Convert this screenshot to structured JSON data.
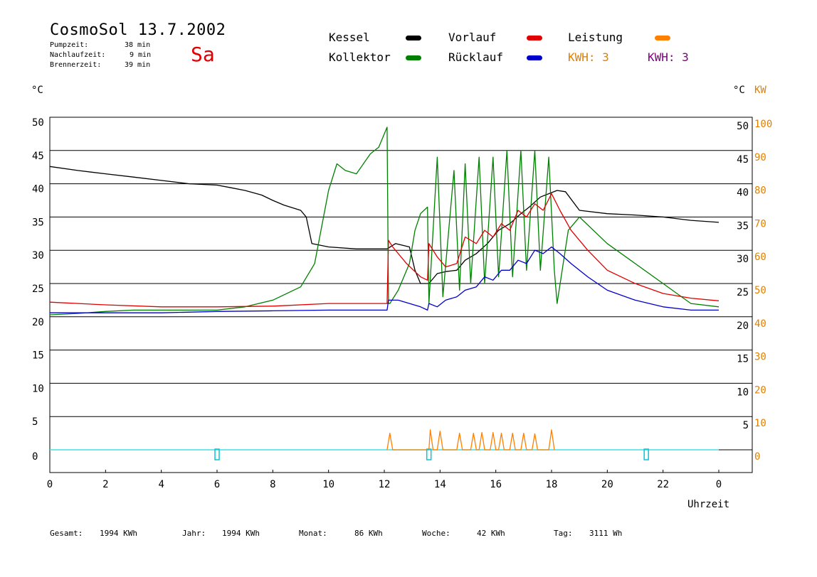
{
  "header": {
    "title": "CosmoSol 13.7.2002",
    "day": "Sa",
    "stats": [
      {
        "label": "Pumpzeit:",
        "value": "38 min"
      },
      {
        "label": "Nachlaufzeit:",
        "value": "9 min"
      },
      {
        "label": "Brennerzeit:",
        "value": "39 min"
      }
    ]
  },
  "legend": {
    "kessel": {
      "label": "Kessel",
      "color": "#000000"
    },
    "kollektor": {
      "label": "Kollektor",
      "color": "#008000"
    },
    "vorlauf": {
      "label": "Vorlauf",
      "color": "#e00000"
    },
    "ruecklauf": {
      "label": "Rücklauf",
      "color": "#0000cc"
    },
    "leistung": {
      "label": "Leistung",
      "color": "#ff8000"
    },
    "kwh1": "KWH: 3",
    "kwh2": "KWH: 3",
    "kwh1_color": "#e08000",
    "kwh2_color": "#800080"
  },
  "axes": {
    "left_unit": "°C",
    "right_unit_c": "°C",
    "right_unit_kw": "KW",
    "x_label": "Uhrzeit"
  },
  "footer": {
    "gesamt_label": "Gesamt:",
    "gesamt": "1994 KWh",
    "jahr_label": "Jahr:",
    "jahr": "1994 KWh",
    "monat_label": "Monat:",
    "monat": "86 KWh",
    "woche_label": "Woche:",
    "woche": "42 KWh",
    "tag_label": "Tag:",
    "tag": "3111 Wh"
  },
  "chart_data": {
    "type": "line",
    "x_ticks": [
      "0",
      "2",
      "4",
      "6",
      "8",
      "10",
      "12",
      "14",
      "16",
      "18",
      "20",
      "22",
      "0"
    ],
    "y_left_ticks": [
      "0",
      "5",
      "10",
      "15",
      "20",
      "25",
      "30",
      "35",
      "40",
      "45",
      "50"
    ],
    "y_right_c_ticks": [
      "5",
      "10",
      "15",
      "20",
      "25",
      "30",
      "35",
      "40",
      "45",
      "50"
    ],
    "y_right_kw_ticks": [
      "0",
      "10",
      "20",
      "30",
      "40",
      "50",
      "60",
      "70",
      "80",
      "90",
      "100"
    ],
    "xlim": [
      0,
      24
    ],
    "ylim": [
      0,
      50
    ],
    "grid": true,
    "series": [
      {
        "name": "Kessel",
        "color": "#000000",
        "x": [
          0,
          1,
          2,
          3,
          4,
          5,
          6,
          6.5,
          7,
          7.6,
          8,
          8.4,
          9,
          9.2,
          9.4,
          10,
          11,
          12.1,
          12.4,
          12.9,
          13.1,
          13.3,
          13.6,
          13.9,
          14.2,
          14.6,
          14.9,
          15.3,
          15.7,
          16.1,
          16.5,
          16.9,
          17.2,
          17.6,
          17.9,
          18.2,
          18.5,
          19,
          20,
          21,
          22,
          23,
          24
        ],
        "y": [
          42.6,
          42,
          41.5,
          41,
          40.5,
          40,
          39.8,
          39.4,
          39,
          38.3,
          37.5,
          36.8,
          36,
          35,
          31,
          30.5,
          30.2,
          30.2,
          31,
          30.5,
          27,
          25,
          25,
          26.5,
          26.8,
          27,
          28.5,
          29.5,
          31,
          33,
          34,
          35.5,
          36.5,
          38,
          38.5,
          39,
          38.8,
          36,
          35.5,
          35.3,
          35,
          34.5,
          34.2
        ]
      },
      {
        "name": "Kollektor",
        "color": "#008000",
        "x": [
          0,
          1,
          2,
          3,
          4,
          5,
          6,
          7,
          8,
          9,
          9.5,
          10,
          10.3,
          10.6,
          11,
          11.5,
          11.8,
          12.1,
          12.15,
          12.2,
          12.5,
          12.9,
          13.1,
          13.3,
          13.55,
          13.6,
          13.9,
          14.1,
          14.5,
          14.7,
          14.9,
          15.1,
          15.4,
          15.6,
          15.9,
          16.1,
          16.4,
          16.6,
          16.9,
          17.1,
          17.4,
          17.6,
          17.9,
          18.1,
          18.2,
          18.6,
          19,
          20,
          21,
          22,
          23,
          24
        ],
        "y": [
          20.3,
          20.5,
          20.8,
          21,
          21,
          21,
          21,
          21.5,
          22.5,
          24.5,
          28,
          39,
          43,
          42,
          41.5,
          44.5,
          45.5,
          48.5,
          22,
          22,
          24,
          28,
          33,
          35.5,
          36.5,
          22,
          44,
          23,
          42,
          24,
          43,
          25,
          44,
          25,
          44,
          26,
          45,
          26,
          45,
          27,
          45,
          27,
          44,
          27,
          22,
          33,
          35,
          31,
          28,
          25,
          22,
          21.5
        ]
      },
      {
        "name": "Vorlauf",
        "color": "#e00000",
        "x": [
          0,
          2,
          4,
          6,
          8,
          10,
          12.1,
          12.15,
          12.3,
          12.8,
          13.3,
          13.55,
          13.6,
          13.9,
          14.2,
          14.6,
          14.9,
          15.3,
          15.6,
          15.9,
          16.2,
          16.5,
          16.8,
          17.1,
          17.4,
          17.7,
          18,
          18.3,
          18.7,
          19.3,
          20,
          21,
          22,
          23,
          24
        ],
        "y": [
          22.2,
          21.8,
          21.5,
          21.5,
          21.6,
          22,
          22,
          31.5,
          30.5,
          28,
          26,
          25.5,
          31,
          29,
          27.5,
          28,
          32,
          31,
          33,
          32,
          34,
          33,
          36,
          35,
          37,
          36,
          38.5,
          36,
          33,
          30,
          27,
          25,
          23.5,
          22.8,
          22.4
        ]
      },
      {
        "name": "Rücklauf",
        "color": "#0000cc",
        "x": [
          0,
          2,
          4,
          6,
          8,
          10,
          12.1,
          12.15,
          12.5,
          13.3,
          13.55,
          13.6,
          13.9,
          14.2,
          14.6,
          14.9,
          15.3,
          15.6,
          15.9,
          16.2,
          16.5,
          16.8,
          17.1,
          17.4,
          17.7,
          18,
          18.3,
          18.7,
          19.3,
          20,
          21,
          22,
          23,
          24
        ],
        "y": [
          20.6,
          20.6,
          20.6,
          20.8,
          20.9,
          21,
          21,
          22.5,
          22.5,
          21.5,
          21,
          22,
          21.5,
          22.5,
          23,
          24,
          24.5,
          26,
          25.5,
          27,
          27,
          28.5,
          28,
          30,
          29.5,
          30.5,
          29.5,
          28,
          26,
          24,
          22.5,
          21.5,
          21,
          21
        ]
      },
      {
        "name": "Leistung",
        "color": "#ff8000",
        "x": [
          12.1,
          12.2,
          12.3,
          13.6,
          13.65,
          13.75,
          13.9,
          14,
          14.1,
          14.6,
          14.7,
          14.8,
          15.1,
          15.2,
          15.3,
          15.4,
          15.5,
          15.6,
          15.8,
          15.9,
          16,
          16.1,
          16.2,
          16.3,
          16.5,
          16.6,
          16.7,
          16.9,
          17,
          17.1,
          17.3,
          17.4,
          17.5,
          17.9,
          18,
          18.1
        ],
        "y": [
          0,
          2.5,
          0,
          0,
          3,
          0,
          0,
          2.8,
          0,
          0,
          2.5,
          0,
          0,
          2.5,
          0,
          0,
          2.6,
          0,
          0,
          2.6,
          0,
          0,
          2.5,
          0,
          0,
          2.5,
          0,
          0,
          2.5,
          0,
          0,
          2.4,
          0,
          0,
          3,
          0
        ]
      }
    ],
    "marker_color": "#00c8d8",
    "baseline_color": "#40e0e0",
    "markers_x": [
      6,
      13.6,
      21.4
    ]
  }
}
